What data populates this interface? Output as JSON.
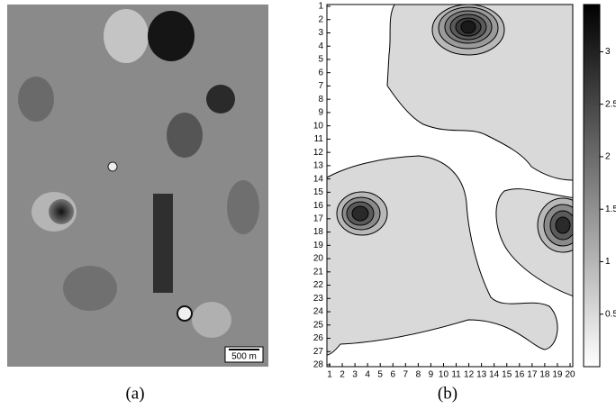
{
  "figure": {
    "panels": [
      {
        "label": "(a)",
        "scale_bar": "500 m"
      },
      {
        "label": "(b)"
      }
    ]
  },
  "chart_data": {
    "type": "contour",
    "xlim": [
      1,
      20
    ],
    "xticks": [
      1,
      2,
      3,
      4,
      5,
      6,
      7,
      8,
      9,
      10,
      11,
      12,
      13,
      14,
      15,
      16,
      17,
      18,
      19,
      20
    ],
    "ylim": [
      28,
      1
    ],
    "yticks": [
      1,
      2,
      3,
      4,
      5,
      6,
      7,
      8,
      9,
      10,
      11,
      12,
      13,
      14,
      15,
      16,
      17,
      18,
      19,
      20,
      21,
      22,
      23,
      24,
      25,
      26,
      27,
      28
    ],
    "colorbar": {
      "clim": [
        0,
        3.45
      ],
      "ticks": [
        0.5,
        1,
        1.5,
        2,
        2.5,
        3
      ]
    }
  }
}
